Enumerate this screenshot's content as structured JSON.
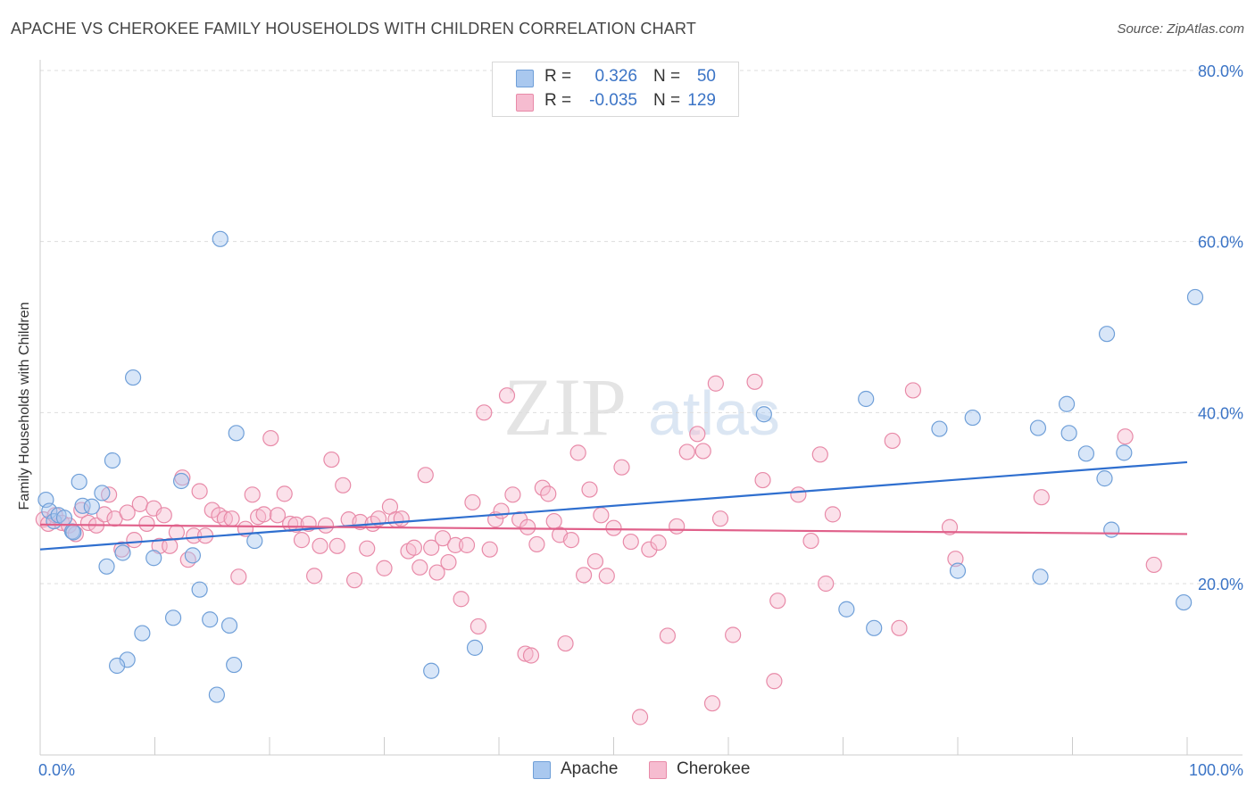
{
  "header": {
    "title": "APACHE VS CHEROKEE FAMILY HOUSEHOLDS WITH CHILDREN CORRELATION CHART",
    "source": "Source: ZipAtlas.com"
  },
  "watermark": {
    "zip": "ZIP",
    "atlas": "atlas"
  },
  "legend": {
    "rows": [
      {
        "r_label": "R =",
        "r_value": "0.326",
        "n_label": "N =",
        "n_value": "50"
      },
      {
        "r_label": "R =",
        "r_value": "-0.035",
        "n_label": "N =",
        "n_value": "129"
      }
    ]
  },
  "bottom_legend": {
    "apache": "Apache",
    "cherokee": "Cherokee"
  },
  "colors": {
    "apache_fill": "#a9c8ef",
    "apache_stroke": "#6f9fd8",
    "apache_line": "#2f6fcf",
    "cherokee_fill": "#f6bcd0",
    "cherokee_stroke": "#e88aa8",
    "cherokee_line": "#e0608a",
    "tick_label": "#3b74c6",
    "grid": "#dddddd"
  },
  "chart_data": {
    "type": "scatter",
    "title": "APACHE VS CHEROKEE FAMILY HOUSEHOLDS WITH CHILDREN CORRELATION CHART",
    "xlabel": "",
    "ylabel": "Family Households with Children",
    "xlim": [
      0,
      100
    ],
    "ylim": [
      0,
      82
    ],
    "x_tick_labels": [
      "0.0%",
      "100.0%"
    ],
    "y_ticks": [
      20,
      40,
      60,
      80
    ],
    "y_tick_labels": [
      "20.0%",
      "40.0%",
      "60.0%",
      "80.0%"
    ],
    "grid": true,
    "legend_position": "top-center",
    "series": [
      {
        "name": "Apache",
        "r": 0.326,
        "n": 50,
        "trend": {
          "x": [
            0,
            100
          ],
          "y": [
            24.0,
            34.2
          ]
        },
        "points": [
          [
            0.5,
            29.8
          ],
          [
            0.8,
            28.5
          ],
          [
            1.2,
            27.3
          ],
          [
            1.6,
            28.0
          ],
          [
            2.1,
            27.7
          ],
          [
            2.8,
            26.1
          ],
          [
            3.4,
            31.9
          ],
          [
            3.7,
            29.1
          ],
          [
            4.5,
            29.0
          ],
          [
            5.4,
            30.6
          ],
          [
            5.8,
            22.0
          ],
          [
            6.3,
            34.4
          ],
          [
            7.2,
            23.6
          ],
          [
            7.6,
            11.1
          ],
          [
            8.1,
            44.1
          ],
          [
            8.9,
            14.2
          ],
          [
            9.9,
            23.0
          ],
          [
            11.6,
            16.0
          ],
          [
            12.3,
            32.0
          ],
          [
            13.3,
            23.3
          ],
          [
            13.9,
            19.3
          ],
          [
            14.8,
            15.8
          ],
          [
            15.4,
            7.0
          ],
          [
            15.7,
            60.3
          ],
          [
            16.5,
            15.1
          ],
          [
            16.9,
            10.5
          ],
          [
            17.1,
            37.6
          ],
          [
            18.7,
            25.0
          ],
          [
            6.7,
            10.4
          ],
          [
            2.9,
            26.0
          ],
          [
            34.1,
            9.8
          ],
          [
            37.9,
            12.5
          ],
          [
            63.1,
            39.8
          ],
          [
            70.3,
            17.0
          ],
          [
            72.0,
            41.6
          ],
          [
            72.7,
            14.8
          ],
          [
            78.4,
            38.1
          ],
          [
            80.0,
            21.5
          ],
          [
            81.3,
            39.4
          ],
          [
            87.0,
            38.2
          ],
          [
            87.2,
            20.8
          ],
          [
            89.5,
            41.0
          ],
          [
            89.7,
            37.6
          ],
          [
            91.2,
            35.2
          ],
          [
            92.8,
            32.3
          ],
          [
            93.0,
            49.2
          ],
          [
            93.4,
            26.3
          ],
          [
            94.5,
            35.3
          ],
          [
            99.7,
            17.8
          ],
          [
            100.7,
            53.5
          ]
        ]
      },
      {
        "name": "Cherokee",
        "r": -0.035,
        "n": 129,
        "trend": {
          "x": [
            0,
            100
          ],
          "y": [
            26.9,
            25.8
          ]
        },
        "points": [
          [
            0.3,
            27.5
          ],
          [
            0.7,
            27.0
          ],
          [
            1.3,
            28.0
          ],
          [
            1.9,
            27.1
          ],
          [
            2.5,
            26.8
          ],
          [
            3.1,
            25.8
          ],
          [
            3.6,
            28.6
          ],
          [
            4.2,
            27.1
          ],
          [
            4.9,
            26.8
          ],
          [
            5.6,
            28.1
          ],
          [
            6.0,
            30.4
          ],
          [
            6.5,
            27.6
          ],
          [
            7.1,
            24.0
          ],
          [
            7.6,
            28.3
          ],
          [
            8.2,
            25.1
          ],
          [
            8.7,
            29.3
          ],
          [
            9.3,
            27.0
          ],
          [
            9.9,
            28.8
          ],
          [
            10.4,
            24.4
          ],
          [
            10.8,
            28.0
          ],
          [
            11.3,
            24.4
          ],
          [
            11.9,
            26.0
          ],
          [
            12.4,
            32.4
          ],
          [
            12.9,
            22.8
          ],
          [
            13.4,
            25.6
          ],
          [
            13.9,
            30.8
          ],
          [
            14.4,
            25.6
          ],
          [
            15.0,
            28.6
          ],
          [
            15.6,
            28.0
          ],
          [
            16.1,
            27.6
          ],
          [
            16.7,
            27.6
          ],
          [
            17.3,
            20.8
          ],
          [
            17.9,
            26.4
          ],
          [
            18.5,
            30.4
          ],
          [
            19.0,
            27.8
          ],
          [
            19.5,
            28.1
          ],
          [
            20.1,
            37.0
          ],
          [
            20.7,
            28.0
          ],
          [
            21.3,
            30.5
          ],
          [
            21.8,
            27.0
          ],
          [
            22.3,
            26.9
          ],
          [
            22.8,
            25.1
          ],
          [
            23.4,
            27.0
          ],
          [
            23.9,
            20.9
          ],
          [
            24.4,
            24.4
          ],
          [
            24.9,
            26.8
          ],
          [
            25.4,
            34.5
          ],
          [
            25.9,
            24.4
          ],
          [
            26.4,
            31.5
          ],
          [
            26.9,
            27.5
          ],
          [
            27.4,
            20.4
          ],
          [
            27.9,
            27.2
          ],
          [
            28.5,
            24.1
          ],
          [
            29.0,
            27.0
          ],
          [
            29.5,
            27.6
          ],
          [
            30.0,
            21.8
          ],
          [
            30.5,
            29.0
          ],
          [
            31.0,
            27.5
          ],
          [
            31.5,
            27.6
          ],
          [
            32.1,
            23.8
          ],
          [
            32.6,
            24.2
          ],
          [
            33.1,
            21.9
          ],
          [
            33.6,
            32.7
          ],
          [
            34.1,
            24.2
          ],
          [
            34.6,
            21.3
          ],
          [
            35.1,
            25.3
          ],
          [
            35.6,
            22.5
          ],
          [
            36.2,
            24.5
          ],
          [
            36.7,
            18.2
          ],
          [
            37.2,
            24.5
          ],
          [
            37.7,
            29.5
          ],
          [
            38.2,
            15.0
          ],
          [
            38.7,
            40.0
          ],
          [
            39.2,
            24.0
          ],
          [
            39.7,
            27.5
          ],
          [
            40.2,
            28.5
          ],
          [
            40.7,
            42.0
          ],
          [
            41.2,
            30.4
          ],
          [
            41.8,
            27.5
          ],
          [
            42.3,
            11.8
          ],
          [
            42.8,
            11.6
          ],
          [
            43.3,
            24.6
          ],
          [
            43.8,
            31.2
          ],
          [
            44.3,
            30.5
          ],
          [
            44.8,
            27.3
          ],
          [
            45.3,
            25.7
          ],
          [
            45.8,
            13.0
          ],
          [
            46.3,
            25.1
          ],
          [
            46.9,
            35.3
          ],
          [
            47.4,
            21.0
          ],
          [
            47.9,
            31.0
          ],
          [
            48.4,
            22.6
          ],
          [
            48.9,
            28.0
          ],
          [
            49.4,
            20.9
          ],
          [
            50.0,
            26.5
          ],
          [
            50.7,
            33.6
          ],
          [
            51.5,
            24.9
          ],
          [
            52.3,
            4.4
          ],
          [
            53.1,
            24.0
          ],
          [
            53.9,
            24.8
          ],
          [
            54.7,
            13.9
          ],
          [
            55.5,
            26.7
          ],
          [
            56.4,
            35.4
          ],
          [
            57.3,
            37.5
          ],
          [
            57.8,
            35.5
          ],
          [
            58.6,
            6.0
          ],
          [
            58.9,
            43.4
          ],
          [
            59.3,
            27.6
          ],
          [
            60.4,
            14.0
          ],
          [
            62.3,
            43.6
          ],
          [
            63.0,
            32.1
          ],
          [
            64.0,
            8.6
          ],
          [
            64.3,
            18.0
          ],
          [
            66.1,
            30.4
          ],
          [
            67.2,
            25.0
          ],
          [
            68.0,
            35.1
          ],
          [
            68.5,
            20.0
          ],
          [
            69.1,
            28.1
          ],
          [
            74.3,
            36.7
          ],
          [
            74.9,
            14.8
          ],
          [
            76.1,
            42.6
          ],
          [
            79.3,
            26.6
          ],
          [
            79.8,
            22.9
          ],
          [
            87.3,
            30.1
          ],
          [
            94.6,
            37.2
          ],
          [
            97.1,
            22.2
          ],
          [
            42.5,
            26.6
          ]
        ]
      }
    ]
  }
}
